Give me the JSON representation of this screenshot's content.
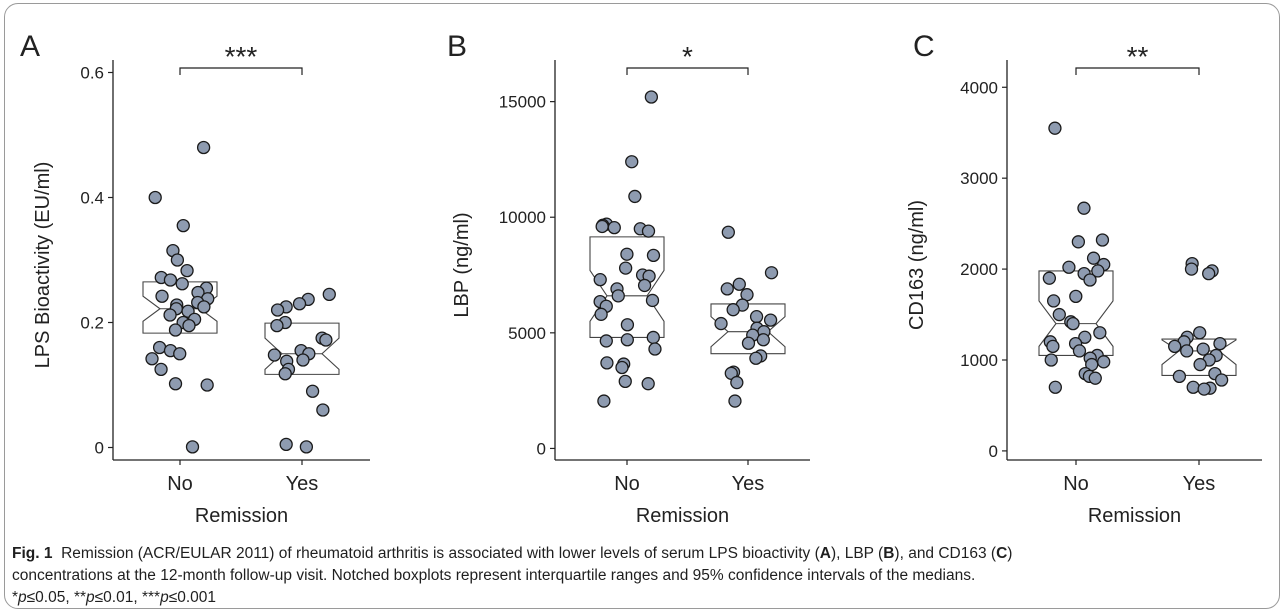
{
  "caption": {
    "fig_label": "Fig. 1",
    "line1_a": "Remission (ACR/EULAR 2011) of rheumatoid arthritis is associated with lower levels of serum LPS bioactivity (",
    "panel_a": "A",
    "line1_b": "), LBP (",
    "panel_b": "B",
    "line1_c": "), and CD163 (",
    "panel_c": "C",
    "line1_d": ")",
    "line2": "concentrations at the 12-month follow-up visit. Notched boxplots represent interquartile ranges and 95% confidence intervals of the medians.",
    "sig1_star": "*",
    "sig1_p": "p",
    "sig1_val": "≤0.05, ",
    "sig2_star": "**",
    "sig2_p": "p",
    "sig2_val": "≤0.01, ",
    "sig3_star": "***",
    "sig3_p": "p",
    "sig3_val": "≤0.001"
  },
  "colors": {
    "point_fill": "#8e9bb0",
    "point_stroke": "#1a1a1a",
    "box_stroke": "#444444",
    "axis": "#222222"
  },
  "chart_data": [
    {
      "panel": "A",
      "type": "scatter",
      "ylabel": "LPS Bioactivity (EU/ml)",
      "xlabel": "Remission",
      "categories": [
        "No",
        "Yes"
      ],
      "ylim": [
        -0.02,
        0.62
      ],
      "yticks": [
        0,
        0.2,
        0.4,
        0.6
      ],
      "ytick_labels": [
        "0",
        "0.2",
        "0.4",
        "0.6"
      ],
      "significance": "***",
      "boxes": [
        {
          "q1": 0.183,
          "median": 0.222,
          "q3": 0.265,
          "notch_low": 0.202,
          "notch_high": 0.242
        },
        {
          "q1": 0.117,
          "median": 0.15,
          "q3": 0.199,
          "notch_low": 0.125,
          "notch_high": 0.175
        }
      ],
      "points": [
        [
          0.48,
          0.4,
          0.355,
          0.315,
          0.3,
          0.283,
          0.272,
          0.268,
          0.262,
          0.255,
          0.248,
          0.242,
          0.238,
          0.232,
          0.228,
          0.225,
          0.222,
          0.218,
          0.212,
          0.205,
          0.2,
          0.195,
          0.188,
          0.16,
          0.155,
          0.15,
          0.142,
          0.125,
          0.102,
          0.1,
          0.001
        ],
        [
          0.245,
          0.237,
          0.23,
          0.225,
          0.22,
          0.2,
          0.195,
          0.175,
          0.172,
          0.155,
          0.15,
          0.148,
          0.14,
          0.138,
          0.125,
          0.118,
          0.09,
          0.06,
          0.005,
          0.001
        ]
      ]
    },
    {
      "panel": "B",
      "type": "scatter",
      "ylabel": "LBP (ng/ml)",
      "xlabel": "Remission",
      "categories": [
        "No",
        "Yes"
      ],
      "ylim": [
        -500,
        16800
      ],
      "yticks": [
        0,
        5000,
        10000,
        15000
      ],
      "ytick_labels": [
        "0",
        "5000",
        "10000",
        "15000"
      ],
      "significance": "*",
      "boxes": [
        {
          "q1": 4800,
          "median": 6600,
          "q3": 9150,
          "notch_low": 5500,
          "notch_high": 7700
        },
        {
          "q1": 4100,
          "median": 5050,
          "q3": 6250,
          "notch_low": 4400,
          "notch_high": 5700
        }
      ],
      "points": [
        [
          15200,
          12400,
          10900,
          9700,
          9650,
          9600,
          9550,
          9500,
          9400,
          8400,
          8350,
          7800,
          7500,
          7450,
          7300,
          7050,
          6900,
          6600,
          6400,
          6350,
          6150,
          5800,
          5350,
          4800,
          4700,
          4650,
          4300,
          3700,
          3650,
          3500,
          2900,
          2800,
          2050
        ],
        [
          9350,
          7600,
          7100,
          6900,
          6650,
          6200,
          6000,
          5700,
          5550,
          5400,
          5200,
          5050,
          4900,
          4700,
          4550,
          4000,
          3900,
          3300,
          3250,
          2850,
          2050
        ]
      ]
    },
    {
      "panel": "C",
      "type": "scatter",
      "ylabel": "CD163 (ng/ml)",
      "xlabel": "Remission",
      "categories": [
        "No",
        "Yes"
      ],
      "ylim": [
        -100,
        4300
      ],
      "yticks": [
        0,
        1000,
        2000,
        3000,
        4000
      ],
      "ytick_labels": [
        "0",
        "1000",
        "2000",
        "3000",
        "4000"
      ],
      "significance": "**",
      "boxes": [
        {
          "q1": 1050,
          "median": 1400,
          "q3": 1980,
          "notch_low": 1150,
          "notch_high": 1650
        },
        {
          "q1": 830,
          "median": 1100,
          "q3": 1230,
          "notch_low": 950,
          "notch_high": 1220
        }
      ],
      "points": [
        [
          3550,
          2670,
          2320,
          2300,
          2120,
          2050,
          2020,
          1980,
          1950,
          1900,
          1880,
          1700,
          1650,
          1500,
          1420,
          1400,
          1300,
          1250,
          1200,
          1180,
          1150,
          1100,
          1050,
          1020,
          1000,
          980,
          950,
          850,
          820,
          800,
          700
        ],
        [
          2060,
          2000,
          1980,
          1950,
          1300,
          1250,
          1200,
          1180,
          1150,
          1120,
          1100,
          1050,
          1000,
          950,
          850,
          820,
          780,
          700,
          690,
          680
        ]
      ]
    }
  ]
}
